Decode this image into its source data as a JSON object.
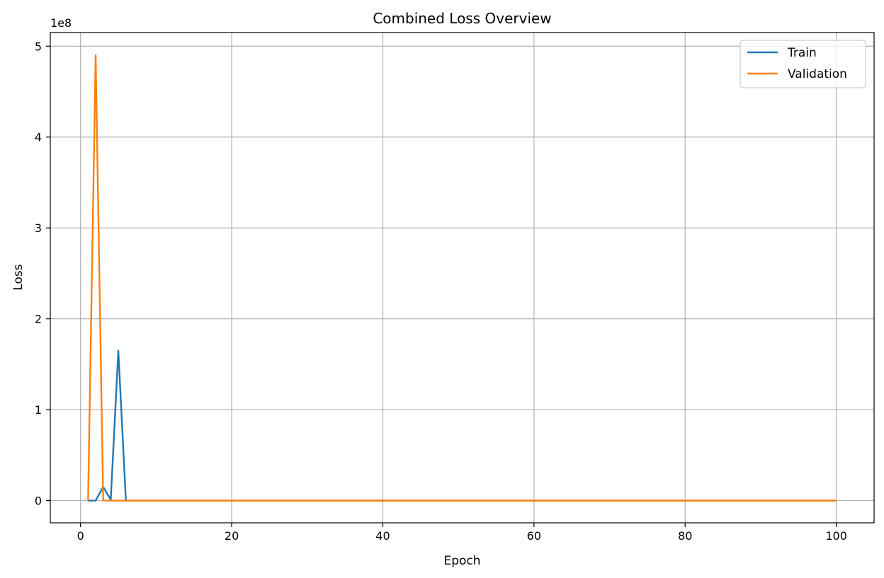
{
  "chart_data": {
    "type": "line",
    "title": "Combined Loss Overview",
    "xlabel": "Epoch",
    "ylabel": "Loss",
    "y_offset_text": "1e8",
    "xlim": [
      -4,
      105
    ],
    "ylim": [
      -0.245,
      5.15
    ],
    "xticks": [
      0,
      20,
      40,
      60,
      80,
      100
    ],
    "yticks": [
      0,
      1,
      2,
      3,
      4,
      5
    ],
    "grid": true,
    "legend_position": "top-right",
    "series": [
      {
        "name": "Train",
        "color": "#1f77b4",
        "points": [
          [
            1,
            0.0
          ],
          [
            2,
            0.0
          ],
          [
            3,
            0.15
          ],
          [
            4,
            0.01
          ],
          [
            5,
            1.65
          ],
          [
            6,
            0.0
          ],
          [
            100,
            0.0
          ]
        ]
      },
      {
        "name": "Validation",
        "color": "#ff7f0e",
        "points": [
          [
            1,
            0.0
          ],
          [
            2,
            4.9
          ],
          [
            3,
            0.0
          ],
          [
            100,
            0.0
          ]
        ]
      }
    ]
  }
}
